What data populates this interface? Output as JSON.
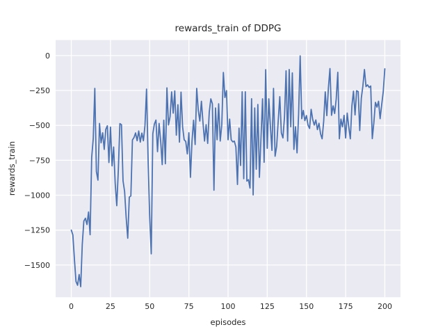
{
  "figure": {
    "title": "rewards_train of DDPG",
    "xlabel": "episodes",
    "ylabel": "rewards_train"
  },
  "chart_data": {
    "type": "line",
    "title": "rewards_train of DDPG",
    "xlabel": "episodes",
    "ylabel": "rewards_train",
    "x_ticks": [
      0,
      25,
      50,
      75,
      100,
      125,
      150,
      175,
      200
    ],
    "y_ticks": [
      0,
      -250,
      -500,
      -750,
      -1000,
      -1250,
      -1500
    ],
    "xlim": [
      -10,
      210
    ],
    "ylim": [
      -1731,
      111
    ],
    "grid": true,
    "legend": false,
    "style": "seaborn-darkgrid",
    "background_color": "#EAEAF2",
    "grid_color": "#FFFFFF",
    "line_color": "#4C72B0",
    "text_color": "#262626",
    "series": [
      {
        "name": "rewards_train",
        "x_start": 0,
        "x_step": 1,
        "values": [
          -1250,
          -1285,
          -1460,
          -1618,
          -1645,
          -1568,
          -1655,
          -1352,
          -1185,
          -1165,
          -1210,
          -1120,
          -1283,
          -730,
          -595,
          -235,
          -830,
          -892,
          -486,
          -625,
          -553,
          -672,
          -528,
          -503,
          -766,
          -512,
          -790,
          -655,
          -914,
          -1075,
          -820,
          -487,
          -495,
          -897,
          -973,
          -1160,
          -1308,
          -1014,
          -1005,
          -604,
          -587,
          -554,
          -610,
          -540,
          -620,
          -555,
          -610,
          -500,
          -240,
          -750,
          -1150,
          -1420,
          -560,
          -490,
          -462,
          -688,
          -486,
          -610,
          -781,
          -463,
          -775,
          -231,
          -497,
          -438,
          -260,
          -412,
          -253,
          -570,
          -352,
          -620,
          -262,
          -510,
          -603,
          -615,
          -704,
          -553,
          -872,
          -612,
          -463,
          -637,
          -235,
          -392,
          -469,
          -327,
          -480,
          -612,
          -495,
          -629,
          -405,
          -310,
          -345,
          -964,
          -375,
          -603,
          -345,
          -612,
          -495,
          -121,
          -300,
          -251,
          -603,
          -455,
          -603,
          -618,
          -613,
          -655,
          -923,
          -520,
          -787,
          -259,
          -882,
          -259,
          -899,
          -889,
          -949,
          -309,
          -998,
          -375,
          -814,
          -350,
          -872,
          -590,
          -310,
          -764,
          -101,
          -664,
          -310,
          -505,
          -679,
          -235,
          -721,
          -650,
          -466,
          -294,
          -554,
          -590,
          -440,
          -109,
          -612,
          -100,
          -510,
          -124,
          -672,
          -510,
          -697,
          -420,
          -2,
          -452,
          -393,
          -466,
          -430,
          -498,
          -522,
          -385,
          -458,
          -498,
          -461,
          -530,
          -485,
          -560,
          -596,
          -470,
          -260,
          -430,
          -232,
          -93,
          -428,
          -360,
          -415,
          -310,
          -120,
          -596,
          -455,
          -510,
          -428,
          -590,
          -412,
          -512,
          -596,
          -360,
          -255,
          -425,
          -252,
          -258,
          -537,
          -305,
          -218,
          -100,
          -222,
          -210,
          -228,
          -218,
          -595,
          -482,
          -335,
          -369,
          -327,
          -452,
          -352,
          -258,
          -95
        ]
      }
    ]
  }
}
